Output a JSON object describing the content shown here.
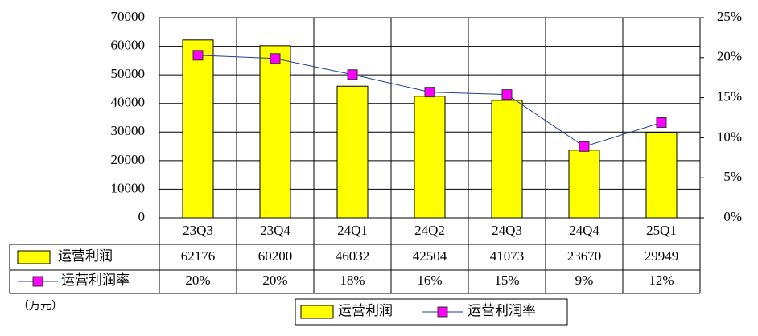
{
  "chart_data": {
    "type": "bar-line",
    "categories": [
      "23Q3",
      "23Q4",
      "24Q1",
      "24Q2",
      "24Q3",
      "24Q4",
      "25Q1"
    ],
    "series": [
      {
        "name": "运营利润",
        "type": "bar",
        "color": "#ffff00",
        "values": [
          62176,
          60200,
          46032,
          42504,
          41073,
          23670,
          29949
        ]
      },
      {
        "name": "运营利润率",
        "type": "line",
        "axis": "y2",
        "color": "#1f3f8f",
        "marker_color": "#ff00ff",
        "values": [
          20.3,
          19.9,
          17.9,
          15.7,
          15.4,
          8.9,
          11.9
        ],
        "value_labels": [
          "20%",
          "20%",
          "18%",
          "16%",
          "15%",
          "9%",
          "12%"
        ]
      }
    ],
    "ylim": [
      0,
      70000
    ],
    "yticks": [
      0,
      10000,
      20000,
      30000,
      40000,
      50000,
      60000,
      70000
    ],
    "y2lim": [
      0,
      25
    ],
    "y2ticks": [
      {
        "value": 0,
        "label": "0%"
      },
      {
        "value": 5,
        "label": "5%"
      },
      {
        "value": 10,
        "label": "10%"
      },
      {
        "value": 15,
        "label": "15%"
      },
      {
        "value": 20,
        "label": "20%"
      },
      {
        "value": 25,
        "label": "25%"
      }
    ],
    "unit_label": "（万元）",
    "grid": true,
    "legend": "bottom"
  }
}
